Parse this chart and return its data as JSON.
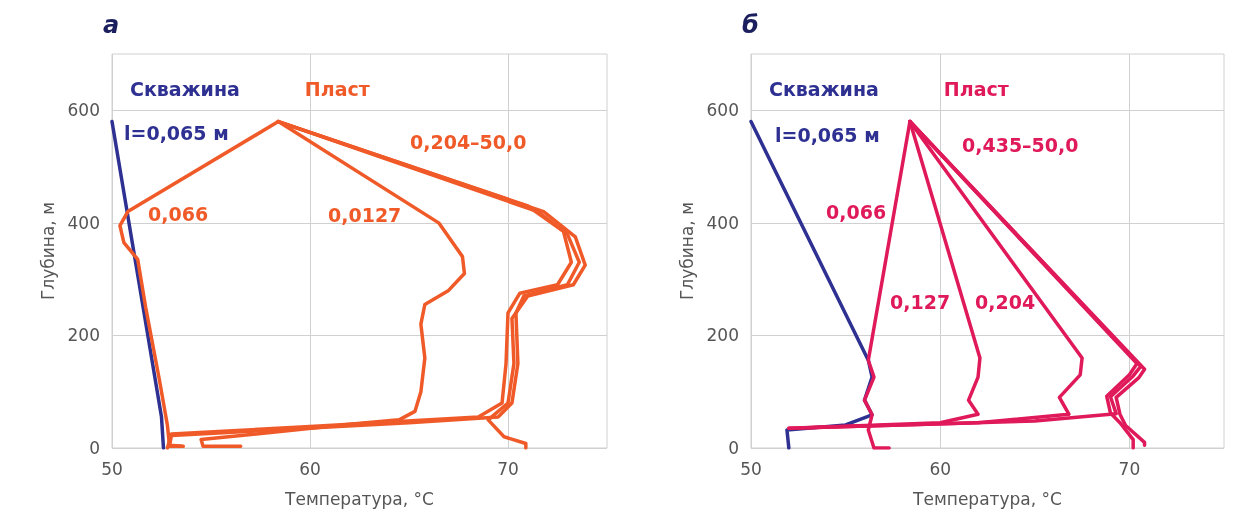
{
  "chart_data": [
    {
      "type": "line",
      "title": "а",
      "xlabel": "Температура, °C",
      "ylabel": "Глубина, м",
      "xlim": [
        50,
        75
      ],
      "ylim": [
        0,
        700
      ],
      "xticks": [
        50,
        60,
        70
      ],
      "yticks": [
        0,
        200,
        400,
        600
      ],
      "grid": true,
      "legend": "top left",
      "marker": "none",
      "line_style": "solid",
      "series": [
        {
          "name": "Скважина",
          "color": "#2e3192",
          "x": [
            50.0,
            52.5,
            52.6
          ],
          "values": [
            580,
            55,
            0
          ]
        },
        {
          "name": "Пласт",
          "color": "#f05a28",
          "x": [
            58.4,
            50.8,
            50.4,
            50.6,
            51.3,
            51.7,
            52.4,
            52.8,
            52.9,
            53.6
          ],
          "values": [
            580,
            420,
            395,
            365,
            335,
            250,
            120,
            40,
            5,
            3
          ]
        },
        {
          "color": "#f05a28",
          "x": [
            58.4,
            66.5,
            67.7,
            67.8,
            67.0,
            65.8,
            65.6,
            65.8,
            65.6,
            65.3,
            64.5,
            62.0,
            54.5,
            54.6,
            56.5
          ],
          "values": [
            580,
            400,
            340,
            310,
            280,
            255,
            220,
            160,
            100,
            65,
            50,
            42,
            15,
            3,
            3
          ]
        },
        {
          "color": "#f05a28",
          "x": [
            58.4,
            71.5,
            73.0,
            73.6,
            73.0,
            70.8,
            70.4,
            70.5,
            70.2,
            69.5,
            65.0,
            53.0,
            52.9,
            53.5
          ],
          "values": [
            580,
            420,
            380,
            330,
            290,
            270,
            240,
            150,
            80,
            55,
            45,
            22,
            3,
            3
          ]
        },
        {
          "color": "#f05a28",
          "x": [
            58.4,
            71.8,
            73.4,
            73.9,
            73.3,
            71.0,
            70.2,
            70.3,
            70.0,
            69.0,
            69.8,
            70.9,
            70.9
          ],
          "values": [
            580,
            420,
            375,
            325,
            290,
            270,
            230,
            150,
            80,
            50,
            20,
            8,
            0
          ]
        },
        {
          "color": "#f05a28",
          "x": [
            58.4,
            71.0,
            72.8,
            73.2,
            72.5,
            70.6,
            70.0,
            69.9,
            69.7,
            68.5,
            60.0,
            53.0,
            52.8
          ],
          "values": [
            580,
            430,
            385,
            330,
            290,
            275,
            240,
            150,
            80,
            55,
            38,
            25,
            0
          ]
        }
      ],
      "annotations": [
        "l=0,065 м",
        "0,066",
        "0,0127",
        "0,204–50,0"
      ]
    },
    {
      "type": "line",
      "title": "б",
      "xlabel": "Температура, °C",
      "ylabel": "Глубина, м",
      "xlim": [
        50,
        75
      ],
      "ylim": [
        0,
        700
      ],
      "xticks": [
        50,
        60,
        70
      ],
      "yticks": [
        0,
        200,
        400,
        600
      ],
      "grid": true,
      "legend": "top left",
      "marker": "none",
      "line_style": "solid",
      "series": [
        {
          "name": "Скважина",
          "color": "#2e3192",
          "x": [
            50.0,
            56.2,
            56.4,
            56.0,
            56.4,
            55.0,
            51.9,
            52.0
          ],
          "values": [
            580,
            156,
            126,
            85,
            59,
            41,
            32,
            0
          ]
        },
        {
          "name": "Пласт",
          "color": "#e0195a",
          "x": [
            58.4,
            56.2,
            56.5,
            56.0,
            56.4,
            56.2,
            56.5,
            57.3
          ],
          "values": [
            580,
            156,
            126,
            85,
            59,
            32,
            0,
            0
          ]
        },
        {
          "color": "#e0195a",
          "x": [
            58.4,
            62.1,
            62.0,
            61.5,
            62.0,
            60.0,
            52.0
          ],
          "values": [
            580,
            160,
            126,
            85,
            60,
            45,
            35
          ]
        },
        {
          "color": "#e0195a",
          "x": [
            58.4,
            67.5,
            67.4,
            66.3,
            66.8,
            62.0,
            52.0
          ],
          "values": [
            580,
            160,
            130,
            90,
            60,
            45,
            35
          ]
        },
        {
          "color": "#e0195a",
          "x": [
            58.4,
            70.8,
            70.5,
            69.3,
            69.5,
            69.8,
            70.8,
            70.8
          ],
          "values": [
            580,
            140,
            125,
            90,
            60,
            40,
            10,
            5
          ]
        },
        {
          "color": "#e0195a",
          "x": [
            58.4,
            70.4,
            70.0,
            68.8,
            69.0,
            69.5,
            70.2,
            70.2
          ],
          "values": [
            580,
            150,
            130,
            92,
            62,
            45,
            15,
            0
          ]
        },
        {
          "color": "#e0195a",
          "x": [
            58.4,
            70.6,
            70.2,
            69.0,
            69.3,
            65.0,
            53.0
          ],
          "values": [
            580,
            145,
            128,
            91,
            61,
            48,
            36
          ]
        }
      ],
      "annotations": [
        "l=0,065 м",
        "0,066",
        "0,127",
        "0,204",
        "0,435–50,0"
      ]
    }
  ]
}
